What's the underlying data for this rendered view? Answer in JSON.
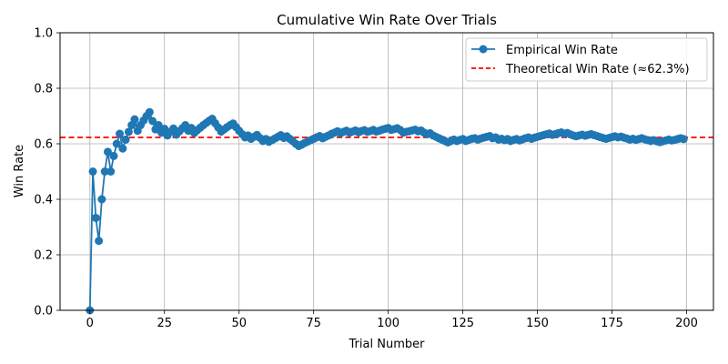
{
  "chart_data": {
    "type": "line",
    "title": "Cumulative Win Rate Over Trials",
    "xlabel": "Trial Number",
    "ylabel": "Win Rate",
    "xlim": [
      -10,
      209
    ],
    "ylim": [
      0.0,
      1.0
    ],
    "xticks": [
      0,
      25,
      50,
      75,
      100,
      125,
      150,
      175,
      200
    ],
    "yticks": [
      0.0,
      0.2,
      0.4,
      0.6,
      0.8,
      1.0
    ],
    "xtick_labels": [
      "0",
      "25",
      "50",
      "75",
      "100",
      "125",
      "150",
      "175",
      "200"
    ],
    "ytick_labels": [
      "0.0",
      "0.2",
      "0.4",
      "0.6",
      "0.8",
      "1.0"
    ],
    "grid": true,
    "legend_position": "top-right",
    "series": [
      {
        "name": "Empirical Win Rate",
        "color": "#1f77b4",
        "style": "solid-with-markers",
        "x": [
          0,
          1,
          2,
          3,
          4,
          5,
          6,
          7,
          8,
          9,
          10,
          11,
          12,
          13,
          14,
          15,
          16,
          17,
          18,
          19,
          20,
          21,
          22,
          23,
          24,
          25,
          26,
          27,
          28,
          29,
          30,
          31,
          32,
          33,
          34,
          35,
          36,
          37,
          38,
          39,
          40,
          41,
          42,
          43,
          44,
          45,
          46,
          47,
          48,
          49,
          50,
          51,
          52,
          53,
          54,
          55,
          56,
          57,
          58,
          59,
          60,
          61,
          62,
          63,
          64,
          65,
          66,
          67,
          68,
          69,
          70,
          71,
          72,
          73,
          74,
          75,
          76,
          77,
          78,
          79,
          80,
          81,
          82,
          83,
          84,
          85,
          86,
          87,
          88,
          89,
          90,
          91,
          92,
          93,
          94,
          95,
          96,
          97,
          98,
          99,
          100,
          101,
          102,
          103,
          104,
          105,
          106,
          107,
          108,
          109,
          110,
          111,
          112,
          113,
          114,
          115,
          116,
          117,
          118,
          119,
          120,
          121,
          122,
          123,
          124,
          125,
          126,
          127,
          128,
          129,
          130,
          131,
          132,
          133,
          134,
          135,
          136,
          137,
          138,
          139,
          140,
          141,
          142,
          143,
          144,
          145,
          146,
          147,
          148,
          149,
          150,
          151,
          152,
          153,
          154,
          155,
          156,
          157,
          158,
          159,
          160,
          161,
          162,
          163,
          164,
          165,
          166,
          167,
          168,
          169,
          170,
          171,
          172,
          173,
          174,
          175,
          176,
          177,
          178,
          179,
          180,
          181,
          182,
          183,
          184,
          185,
          186,
          187,
          188,
          189,
          190,
          191,
          192,
          193,
          194,
          195,
          196,
          197,
          198,
          199
        ],
        "values": [
          0.0,
          0.5,
          0.333,
          0.25,
          0.4,
          0.5,
          0.571,
          0.5,
          0.556,
          0.6,
          0.636,
          0.583,
          0.615,
          0.643,
          0.667,
          0.688,
          0.647,
          0.667,
          0.684,
          0.7,
          0.714,
          0.682,
          0.652,
          0.667,
          0.64,
          0.654,
          0.63,
          0.643,
          0.655,
          0.633,
          0.645,
          0.656,
          0.667,
          0.647,
          0.657,
          0.639,
          0.649,
          0.658,
          0.667,
          0.675,
          0.683,
          0.69,
          0.674,
          0.659,
          0.644,
          0.652,
          0.66,
          0.667,
          0.673,
          0.66,
          0.647,
          0.635,
          0.623,
          0.63,
          0.618,
          0.625,
          0.632,
          0.621,
          0.61,
          0.617,
          0.607,
          0.613,
          0.619,
          0.625,
          0.631,
          0.621,
          0.627,
          0.618,
          0.609,
          0.6,
          0.592,
          0.597,
          0.603,
          0.608,
          0.613,
          0.618,
          0.623,
          0.628,
          0.62,
          0.625,
          0.63,
          0.636,
          0.64,
          0.645,
          0.638,
          0.643,
          0.647,
          0.64,
          0.644,
          0.648,
          0.641,
          0.646,
          0.649,
          0.643,
          0.646,
          0.65,
          0.644,
          0.647,
          0.651,
          0.654,
          0.657,
          0.65,
          0.653,
          0.656,
          0.65,
          0.64,
          0.643,
          0.645,
          0.648,
          0.651,
          0.645,
          0.648,
          0.64,
          0.635,
          0.638,
          0.63,
          0.625,
          0.62,
          0.615,
          0.61,
          0.605,
          0.61,
          0.615,
          0.61,
          0.614,
          0.617,
          0.61,
          0.614,
          0.618,
          0.62,
          0.615,
          0.619,
          0.622,
          0.625,
          0.628,
          0.62,
          0.623,
          0.615,
          0.618,
          0.613,
          0.617,
          0.61,
          0.614,
          0.617,
          0.612,
          0.616,
          0.62,
          0.623,
          0.618,
          0.622,
          0.625,
          0.628,
          0.631,
          0.634,
          0.637,
          0.632,
          0.635,
          0.638,
          0.641,
          0.636,
          0.639,
          0.634,
          0.63,
          0.627,
          0.63,
          0.633,
          0.629,
          0.632,
          0.635,
          0.631,
          0.628,
          0.624,
          0.621,
          0.618,
          0.621,
          0.624,
          0.627,
          0.623,
          0.626,
          0.622,
          0.619,
          0.615,
          0.618,
          0.614,
          0.617,
          0.62,
          0.616,
          0.613,
          0.61,
          0.613,
          0.609,
          0.606,
          0.609,
          0.612,
          0.615,
          0.612,
          0.614,
          0.617,
          0.62,
          0.617
        ]
      },
      {
        "name": "Theoretical Win Rate (≈62.3%)",
        "color": "#ff0000",
        "style": "dashed",
        "value": 0.623
      }
    ]
  }
}
